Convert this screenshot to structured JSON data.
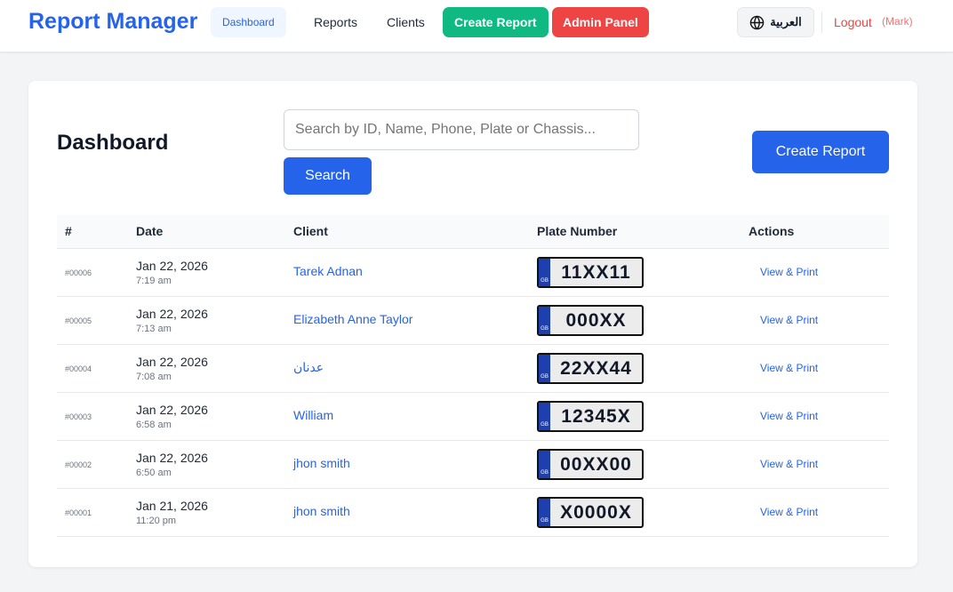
{
  "nav": {
    "brand": "Report Manager",
    "links": [
      "Dashboard",
      "Reports",
      "Clients"
    ],
    "create": "Create Report",
    "admin": "Admin Panel",
    "lang": "العربية",
    "logout": "Logout",
    "user": "(Mark)"
  },
  "colors": {
    "primary": "#2563eb",
    "green": "#10b981",
    "red": "#ef4444"
  },
  "main": {
    "title": "Dashboard",
    "search_placeholder": "Search by ID, Name, Phone, Plate or Chassis...",
    "search_button": "Search",
    "create_button": "Create Report",
    "columns": [
      "#",
      "Date",
      "Client",
      "Plate Number",
      "Actions"
    ],
    "plate_country": "GB",
    "rows": [
      {
        "id": "#00006",
        "date": "Jan 22, 2026",
        "time": "7:19 am",
        "client": "Tarek Adnan",
        "plate": "11XX11",
        "action": "View & Print"
      },
      {
        "id": "#00005",
        "date": "Jan 22, 2026",
        "time": "7:13 am",
        "client": "Elizabeth Anne Taylor",
        "plate": "000XX",
        "action": "View & Print"
      },
      {
        "id": "#00004",
        "date": "Jan 22, 2026",
        "time": "7:08 am",
        "client": "عدنان",
        "plate": "22XX44",
        "action": "View & Print"
      },
      {
        "id": "#00003",
        "date": "Jan 22, 2026",
        "time": "6:58 am",
        "client": "William",
        "plate": "12345X",
        "action": "View & Print"
      },
      {
        "id": "#00002",
        "date": "Jan 22, 2026",
        "time": "6:50 am",
        "client": "jhon smith",
        "plate": "00XX00",
        "action": "View & Print"
      },
      {
        "id": "#00001",
        "date": "Jan 21, 2026",
        "time": "11:20 pm",
        "client": "jhon smith",
        "plate": "X0000X",
        "action": "View & Print"
      }
    ]
  }
}
